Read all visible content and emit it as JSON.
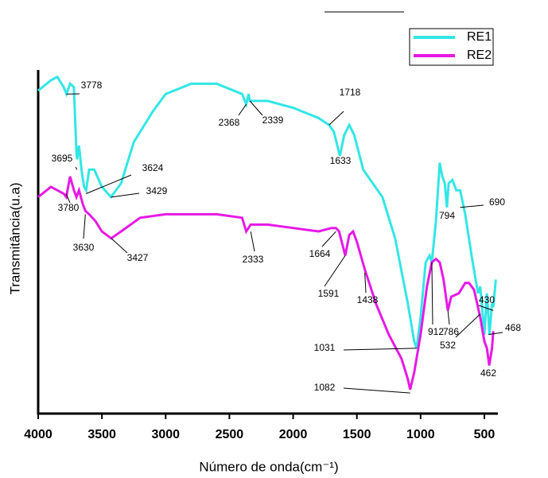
{
  "chart_data": {
    "type": "line",
    "xlabel": "Número de onda(cm⁻¹)",
    "ylabel": "Transmitância(u.a)",
    "xlim": [
      4000,
      400
    ],
    "ylim": [
      0,
      100
    ],
    "xticks": [
      4000,
      3500,
      3000,
      2500,
      2000,
      1500,
      1000,
      500
    ],
    "legend": "upper right",
    "series": [
      {
        "name": "RE1",
        "color": "#33e6e6",
        "x": [
          4000,
          3900,
          3850,
          3800,
          3778,
          3750,
          3720,
          3700,
          3695,
          3680,
          3660,
          3640,
          3624,
          3600,
          3560,
          3500,
          3429,
          3350,
          3250,
          3100,
          3000,
          2800,
          2600,
          2400,
          2368,
          2350,
          2339,
          2200,
          2000,
          1800,
          1718,
          1680,
          1633,
          1600,
          1560,
          1520,
          1450,
          1300,
          1200,
          1100,
          1050,
          1031,
          1000,
          960,
          930,
          912,
          880,
          850,
          830,
          810,
          794,
          780,
          750,
          720,
          690,
          650,
          600,
          550,
          532,
          500,
          480,
          460,
          440,
          430,
          410
        ],
        "values": [
          94,
          97,
          98,
          95,
          93,
          96,
          95,
          76,
          74,
          78,
          71,
          66,
          65,
          71,
          71,
          66,
          63,
          67,
          79,
          88,
          93,
          96,
          96,
          93,
          90,
          93,
          91,
          91,
          89,
          86,
          84,
          82,
          75,
          81,
          84,
          81,
          71,
          63,
          51,
          32,
          21,
          19,
          28,
          44,
          46,
          44,
          56,
          73,
          69,
          67,
          60,
          67,
          68,
          65,
          65,
          58,
          46,
          35,
          37,
          23,
          35,
          23,
          32,
          31,
          39
        ]
      },
      {
        "name": "RE2",
        "color": "#e619e6",
        "x": [
          4000,
          3900,
          3850,
          3800,
          3780,
          3750,
          3720,
          3700,
          3680,
          3650,
          3630,
          3600,
          3550,
          3500,
          3427,
          3350,
          3200,
          3000,
          2800,
          2600,
          2400,
          2368,
          2333,
          2200,
          2000,
          1800,
          1700,
          1664,
          1640,
          1591,
          1560,
          1530,
          1500,
          1438,
          1350,
          1250,
          1150,
          1100,
          1082,
          1050,
          1000,
          950,
          912,
          880,
          850,
          820,
          786,
          760,
          700,
          650,
          620,
          580,
          532,
          500,
          480,
          462,
          440,
          430
        ],
        "values": [
          63,
          66,
          65,
          64,
          63,
          69,
          65,
          63,
          65,
          61,
          59,
          58,
          56,
          53,
          51,
          53,
          57,
          58,
          58,
          58,
          57,
          53,
          55,
          55,
          54,
          53,
          54,
          54,
          53,
          46,
          52,
          53,
          50,
          42,
          32,
          23,
          16,
          10,
          7,
          12,
          23,
          37,
          44,
          45,
          44,
          39,
          30,
          34,
          35,
          38,
          38,
          36,
          28,
          21,
          19,
          14,
          19,
          24
        ]
      }
    ],
    "annotations": [
      {
        "x": 3778,
        "y": 93
      },
      {
        "x": 3695,
        "y": 71
      },
      {
        "x": 3624,
        "y": 64
      },
      {
        "x": 3429,
        "y": 63
      },
      {
        "x": 2368,
        "y": 90
      },
      {
        "x": 2339,
        "y": 91
      },
      {
        "x": 1718,
        "y": 84
      },
      {
        "x": 1633,
        "y": 75
      },
      {
        "x": 794,
        "y": 60
      },
      {
        "x": 690,
        "y": 60
      },
      {
        "x": 430,
        "y": 30
      },
      {
        "x": 3780,
        "y": 64
      },
      {
        "x": 3630,
        "y": 58
      },
      {
        "x": 3427,
        "y": 51
      },
      {
        "x": 2333,
        "y": 53
      },
      {
        "x": 1664,
        "y": 53
      },
      {
        "x": 1591,
        "y": 46
      },
      {
        "x": 1438,
        "y": 41
      },
      {
        "x": 1031,
        "y": 19
      },
      {
        "x": 912,
        "y": 44
      },
      {
        "x": 786,
        "y": 30
      },
      {
        "x": 532,
        "y": 29
      },
      {
        "x": 468,
        "y": 23
      },
      {
        "x": 462,
        "y": 14
      },
      {
        "x": 1082,
        "y": 6
      }
    ]
  }
}
